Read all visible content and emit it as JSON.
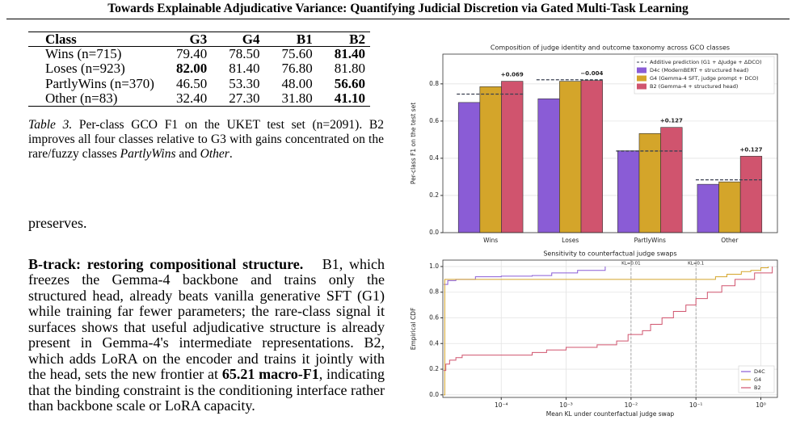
{
  "header": {
    "title": "Towards Explainable Adjudicative Variance: Quantifying Judicial Discretion via Gated Multi-Task Learning"
  },
  "table": {
    "columns": [
      "Class",
      "G3",
      "G4",
      "B1",
      "B2"
    ],
    "rows": [
      [
        "Wins (n=715)",
        "79.40",
        "78.50",
        "75.60",
        "81.40"
      ],
      [
        "Loses (n=923)",
        "82.00",
        "81.40",
        "76.80",
        "81.80"
      ],
      [
        "PartlyWins (n=370)",
        "46.50",
        "53.30",
        "48.00",
        "56.60"
      ],
      [
        "Other (n=83)",
        "32.40",
        "27.30",
        "31.80",
        "41.10"
      ]
    ],
    "best_column": [
      4,
      1,
      4,
      4
    ]
  },
  "caption": {
    "label": "Table 3.",
    "runs": [
      {
        "text": " Per-class GCO F1 on the UKET test set (n=2091). B2 improves all four classes relative to G3 with gains concentrated on the rare/fuzzy classes ",
        "style": "normal"
      },
      {
        "text": "PartlyWins",
        "style": "italic"
      },
      {
        "text": " and ",
        "style": "normal"
      },
      {
        "text": "Other",
        "style": "italic"
      },
      {
        "text": ".",
        "style": "normal"
      }
    ]
  },
  "fragment": "preserves.",
  "paragraph": {
    "heading": "B-track: restoring compositional structure.",
    "runs": [
      {
        "text": "B1, which freezes the Gemma-4 backbone and trains only the structured head, already beats vanilla generative SFT (G1) while training far fewer parameters; the rare-class signal it surfaces shows that useful adjudicative structure is already present in Gemma-4's intermediate representations. B2, which adds LoRA on the encoder and trains it jointly with the head, sets the new frontier at ",
        "style": "normal"
      },
      {
        "text": "65.21 macro-F1",
        "style": "bold"
      },
      {
        "text": ", indicating that the binding constraint is the conditioning interface rather than backbone scale or LoRA capacity.",
        "style": "normal"
      }
    ]
  },
  "chart_data": [
    {
      "type": "bar",
      "title": "Composition of judge identity and outcome taxonomy across GCO classes",
      "y_label": "Per-class F1 on the test set",
      "categories": [
        "Wins",
        "Loses",
        "PartlyWins",
        "Other"
      ],
      "series": [
        {
          "name": "D4c (ModernBERT + structured head)",
          "color": "#8a5cd6",
          "values": [
            0.7,
            0.72,
            0.44,
            0.26
          ]
        },
        {
          "name": "G4 (Gemma-4 SFT, judge prompt + DCO)",
          "color": "#d4a52a",
          "values": [
            0.785,
            0.814,
            0.533,
            0.273
          ]
        },
        {
          "name": "B2 (Gemma-4 + structured head)",
          "color": "#d0546e",
          "values": [
            0.814,
            0.818,
            0.566,
            0.411
          ]
        }
      ],
      "reference": {
        "name": "Additive prediction (G1 + ΔJudge + ΔDCO)",
        "color": "#3a4050",
        "values": [
          0.745,
          0.822,
          0.439,
          0.284
        ]
      },
      "annotations": [
        "+0.069",
        "−0.004",
        "+0.127",
        "+0.127"
      ],
      "annotation_color": "#2e7d32",
      "ylim": [
        0,
        0.96
      ],
      "yticks": [
        {
          "value": 0,
          "label": "0.0"
        },
        {
          "value": 0.2,
          "label": "0.2"
        },
        {
          "value": 0.4,
          "label": "0.4"
        },
        {
          "value": 0.6,
          "label": "0.6"
        },
        {
          "value": 0.8,
          "label": "0.8"
        }
      ],
      "grid": true,
      "legend": "upper right"
    },
    {
      "type": "step",
      "title": "Sensitivity to counterfactual judge swaps",
      "x_label": "Mean KL under counterfactual judge swap",
      "y_label": "Empirical CDF",
      "xscale": "log",
      "xlim": [
        1.26e-05,
        1.8
      ],
      "ylim": [
        -0.02,
        1.05
      ],
      "xticks": [
        {
          "value": 0.0001,
          "label": "10⁻⁴"
        },
        {
          "value": 0.001,
          "label": "10⁻³"
        },
        {
          "value": 0.01,
          "label": "10⁻²"
        },
        {
          "value": 0.1,
          "label": "10⁻¹"
        },
        {
          "value": 1,
          "label": "10⁰"
        }
      ],
      "yticks": [
        {
          "value": 0,
          "label": "0.0"
        },
        {
          "value": 0.2,
          "label": "0.2"
        },
        {
          "value": 0.4,
          "label": "0.4"
        },
        {
          "value": 0.6,
          "label": "0.6"
        },
        {
          "value": 0.8,
          "label": "0.8"
        },
        {
          "value": 1,
          "label": "1.0"
        }
      ],
      "vlines": [
        {
          "value": 0.01,
          "label": "KL=0.01"
        },
        {
          "value": 0.1,
          "label": "KL=0.1"
        }
      ],
      "series": [
        {
          "name": "D4C",
          "color": "#8a5cd6",
          "x": [
            1.3e-05,
            1.5e-05,
            2e-05,
            4e-05,
            0.0001,
            0.0003,
            0.0006,
            0.0015,
            0.004
          ],
          "values": [
            0.86,
            0.89,
            0.9,
            0.92,
            0.925,
            0.93,
            0.95,
            0.97,
            1.0
          ]
        },
        {
          "name": "G4",
          "color": "#d4a52a",
          "x": [
            1.3e-05,
            1.35e-05,
            0.2,
            0.3,
            0.5,
            0.7,
            1.0,
            1.3
          ],
          "values": [
            0,
            0.9,
            0.92,
            0.94,
            0.96,
            0.97,
            0.99,
            1.0
          ]
        },
        {
          "name": "B2",
          "color": "#d0546e",
          "x": [
            1.3e-05,
            1.4e-05,
            1.6e-05,
            2e-05,
            2.5e-05,
            0.0003,
            0.0005,
            0.001,
            0.003,
            0.006,
            0.009,
            0.015,
            0.02,
            0.03,
            0.045,
            0.07,
            0.1,
            0.15,
            0.25,
            0.4,
            0.8,
            1.5
          ],
          "values": [
            0.19,
            0.24,
            0.27,
            0.29,
            0.31,
            0.33,
            0.35,
            0.37,
            0.39,
            0.42,
            0.47,
            0.5,
            0.55,
            0.6,
            0.65,
            0.7,
            0.75,
            0.8,
            0.85,
            0.9,
            0.95,
            1.0
          ]
        }
      ],
      "grid": true,
      "legend": "lower right"
    }
  ]
}
